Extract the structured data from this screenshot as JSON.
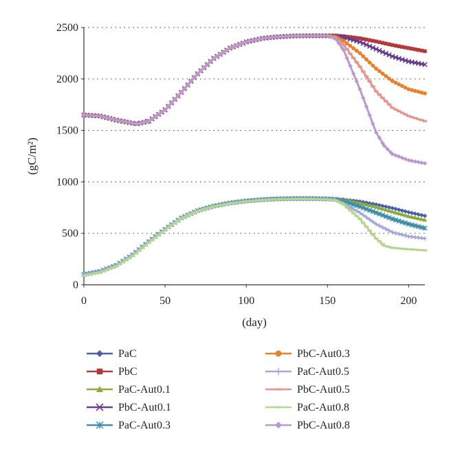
{
  "chart_data": {
    "type": "line",
    "title": "",
    "xlabel": "(day)",
    "ylabel": "(gC/m²)",
    "xlim": [
      0,
      210
    ],
    "ylim": [
      0,
      2500
    ],
    "xticks": [
      0,
      50,
      100,
      150,
      200
    ],
    "yticks": [
      0,
      500,
      1000,
      1500,
      2000,
      2500
    ],
    "grid": "horizontal dotted",
    "legend_position": "bottom, two columns",
    "series": [
      {
        "name": "PaC",
        "color": "#4a5fa8",
        "marker": "diamond",
        "x": [
          0,
          10,
          20,
          30,
          40,
          50,
          60,
          70,
          80,
          90,
          100,
          110,
          120,
          130,
          140,
          150,
          155,
          160,
          170,
          180,
          190,
          200,
          210
        ],
        "y": [
          100,
          130,
          190,
          290,
          420,
          540,
          650,
          720,
          765,
          795,
          815,
          828,
          835,
          838,
          838,
          835,
          832,
          828,
          810,
          780,
          745,
          705,
          670
        ]
      },
      {
        "name": "PbC",
        "color": "#b33a3a",
        "marker": "square",
        "x": [
          0,
          10,
          20,
          30,
          33,
          40,
          50,
          60,
          70,
          80,
          90,
          100,
          110,
          120,
          130,
          140,
          150,
          155,
          160,
          170,
          180,
          190,
          200,
          210
        ],
        "y": [
          1650,
          1640,
          1600,
          1570,
          1565,
          1590,
          1700,
          1870,
          2050,
          2200,
          2300,
          2360,
          2395,
          2410,
          2418,
          2420,
          2420,
          2420,
          2415,
          2395,
          2365,
          2330,
          2300,
          2270
        ]
      },
      {
        "name": "PaC-Aut0.1",
        "color": "#8aac3d",
        "marker": "triangle",
        "x": [
          0,
          10,
          20,
          30,
          40,
          50,
          60,
          70,
          80,
          90,
          100,
          110,
          120,
          130,
          140,
          150,
          155,
          160,
          170,
          180,
          190,
          200,
          210
        ],
        "y": [
          100,
          130,
          190,
          290,
          420,
          540,
          650,
          720,
          765,
          795,
          815,
          828,
          835,
          838,
          838,
          835,
          832,
          825,
          795,
          755,
          710,
          665,
          630
        ]
      },
      {
        "name": "PbC-Aut0.1",
        "color": "#6a3d8f",
        "marker": "x",
        "x": [
          0,
          10,
          20,
          30,
          33,
          40,
          50,
          60,
          70,
          80,
          90,
          100,
          110,
          120,
          130,
          140,
          150,
          155,
          160,
          170,
          180,
          190,
          200,
          210
        ],
        "y": [
          1650,
          1640,
          1600,
          1570,
          1565,
          1590,
          1700,
          1870,
          2050,
          2200,
          2300,
          2360,
          2395,
          2410,
          2418,
          2420,
          2420,
          2418,
          2405,
          2360,
          2290,
          2220,
          2170,
          2140
        ]
      },
      {
        "name": "PaC-Aut0.3",
        "color": "#3d8fa8",
        "marker": "star",
        "x": [
          0,
          10,
          20,
          30,
          40,
          50,
          60,
          70,
          80,
          90,
          100,
          110,
          120,
          130,
          140,
          150,
          155,
          160,
          170,
          180,
          190,
          200,
          210
        ],
        "y": [
          100,
          130,
          190,
          290,
          420,
          540,
          650,
          720,
          765,
          795,
          815,
          828,
          835,
          838,
          838,
          835,
          830,
          810,
          760,
          700,
          640,
          590,
          550
        ]
      },
      {
        "name": "PbC-Aut0.3",
        "color": "#e8812a",
        "marker": "circle",
        "x": [
          0,
          10,
          20,
          30,
          33,
          40,
          50,
          60,
          70,
          80,
          90,
          100,
          110,
          120,
          130,
          140,
          150,
          155,
          160,
          170,
          180,
          190,
          200,
          210
        ],
        "y": [
          1650,
          1640,
          1600,
          1570,
          1565,
          1590,
          1700,
          1870,
          2050,
          2200,
          2300,
          2360,
          2395,
          2410,
          2418,
          2420,
          2420,
          2410,
          2370,
          2250,
          2100,
          1980,
          1900,
          1860
        ]
      },
      {
        "name": "PaC-Aut0.5",
        "color": "#a3a8d6",
        "marker": "plus",
        "x": [
          0,
          10,
          20,
          30,
          40,
          50,
          60,
          70,
          80,
          90,
          100,
          110,
          120,
          130,
          140,
          150,
          155,
          160,
          170,
          180,
          190,
          200,
          210
        ],
        "y": [
          100,
          130,
          190,
          290,
          420,
          540,
          650,
          720,
          765,
          795,
          815,
          828,
          835,
          838,
          838,
          835,
          825,
          790,
          700,
          590,
          510,
          470,
          450
        ]
      },
      {
        "name": "PbC-Aut0.5",
        "color": "#e8948c",
        "marker": "dash",
        "x": [
          0,
          10,
          20,
          30,
          33,
          40,
          50,
          60,
          70,
          80,
          90,
          100,
          110,
          120,
          130,
          140,
          150,
          155,
          160,
          170,
          180,
          190,
          200,
          210
        ],
        "y": [
          1650,
          1640,
          1600,
          1570,
          1565,
          1590,
          1700,
          1870,
          2050,
          2200,
          2300,
          2360,
          2395,
          2410,
          2418,
          2420,
          2420,
          2400,
          2330,
          2120,
          1880,
          1720,
          1640,
          1590
        ]
      },
      {
        "name": "PaC-Aut0.8",
        "color": "#b5d68c",
        "marker": "dash",
        "x": [
          0,
          10,
          20,
          30,
          40,
          50,
          60,
          70,
          80,
          90,
          100,
          110,
          120,
          130,
          140,
          150,
          155,
          160,
          170,
          180,
          185,
          190,
          200,
          210
        ],
        "y": [
          90,
          120,
          180,
          280,
          410,
          535,
          645,
          715,
          760,
          790,
          810,
          823,
          830,
          833,
          833,
          830,
          820,
          780,
          640,
          450,
          380,
          360,
          345,
          335
        ]
      },
      {
        "name": "PbC-Aut0.8",
        "color": "#b89ad0",
        "marker": "diamond",
        "x": [
          0,
          10,
          20,
          30,
          33,
          40,
          50,
          60,
          70,
          80,
          90,
          100,
          110,
          120,
          130,
          140,
          150,
          155,
          160,
          170,
          180,
          185,
          190,
          200,
          210
        ],
        "y": [
          1650,
          1640,
          1600,
          1570,
          1565,
          1590,
          1700,
          1870,
          2050,
          2200,
          2300,
          2360,
          2395,
          2410,
          2418,
          2420,
          2420,
          2390,
          2280,
          1900,
          1480,
          1350,
          1270,
          1210,
          1180
        ]
      }
    ]
  }
}
